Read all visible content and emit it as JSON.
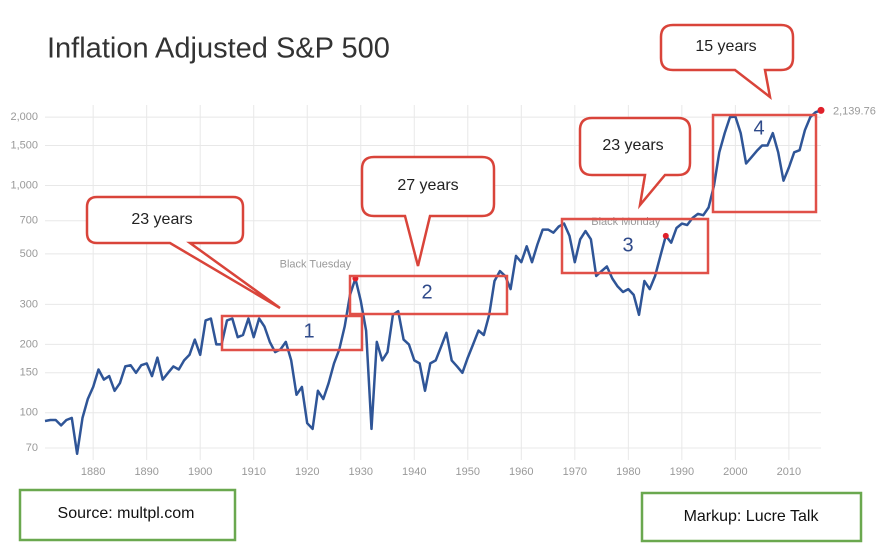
{
  "chart_data": {
    "type": "line",
    "title": "Inflation Adjusted S&P 500",
    "log_scale": true,
    "grid": true,
    "x": [
      1871,
      1872,
      1873,
      1874,
      1875,
      1876,
      1877,
      1878,
      1879,
      1880,
      1881,
      1882,
      1883,
      1884,
      1885,
      1886,
      1887,
      1888,
      1889,
      1890,
      1891,
      1892,
      1893,
      1894,
      1895,
      1896,
      1897,
      1898,
      1899,
      1900,
      1901,
      1902,
      1903,
      1904,
      1905,
      1906,
      1907,
      1908,
      1909,
      1910,
      1911,
      1912,
      1913,
      1914,
      1915,
      1916,
      1917,
      1918,
      1919,
      1920,
      1921,
      1922,
      1923,
      1924,
      1925,
      1926,
      1927,
      1928,
      1929,
      1930,
      1931,
      1932,
      1933,
      1934,
      1935,
      1936,
      1937,
      1938,
      1939,
      1940,
      1941,
      1942,
      1943,
      1944,
      1945,
      1946,
      1947,
      1948,
      1949,
      1950,
      1951,
      1952,
      1953,
      1954,
      1955,
      1956,
      1957,
      1958,
      1959,
      1960,
      1961,
      1962,
      1963,
      1964,
      1965,
      1966,
      1967,
      1968,
      1969,
      1970,
      1971,
      1972,
      1973,
      1974,
      1975,
      1976,
      1977,
      1978,
      1979,
      1980,
      1981,
      1982,
      1983,
      1984,
      1985,
      1986,
      1987,
      1988,
      1989,
      1990,
      1991,
      1992,
      1993,
      1994,
      1995,
      1996,
      1997,
      1998,
      1999,
      2000,
      2001,
      2002,
      2003,
      2004,
      2005,
      2006,
      2007,
      2008,
      2009,
      2010,
      2011,
      2012,
      2013,
      2014,
      2015,
      2016
    ],
    "series": [
      {
        "name": "S&P 500",
        "color": "#2f5597",
        "values": [
          92,
          93,
          93,
          88,
          93,
          95,
          66,
          95,
          115,
          130,
          155,
          140,
          145,
          125,
          135,
          160,
          162,
          150,
          162,
          165,
          145,
          175,
          140,
          150,
          160,
          155,
          170,
          180,
          210,
          180,
          255,
          260,
          200,
          200,
          255,
          260,
          215,
          220,
          260,
          215,
          260,
          240,
          205,
          185,
          190,
          205,
          170,
          120,
          130,
          90,
          85,
          125,
          115,
          135,
          165,
          190,
          240,
          330,
          390,
          310,
          230,
          85,
          205,
          170,
          185,
          270,
          280,
          210,
          200,
          170,
          165,
          125,
          165,
          170,
          195,
          225,
          170,
          160,
          150,
          175,
          200,
          230,
          220,
          270,
          380,
          420,
          400,
          350,
          490,
          460,
          540,
          460,
          550,
          640,
          640,
          620,
          660,
          680,
          600,
          460,
          580,
          630,
          580,
          400,
          420,
          440,
          390,
          360,
          340,
          350,
          330,
          270,
          380,
          350,
          400,
          490,
          600,
          560,
          650,
          680,
          670,
          720,
          750,
          740,
          800,
          1000,
          1400,
          1700,
          2000,
          2010,
          1700,
          1250,
          1330,
          1420,
          1500,
          1500,
          1700,
          1400,
          1050,
          1200,
          1400,
          1430,
          1750,
          2000,
          2100,
          2139.76
        ]
      }
    ],
    "last_value_label": "2,139.76",
    "xlim": [
      1871,
      2016
    ],
    "ylim": [
      62,
      2260
    ],
    "xticks": [
      1880,
      1890,
      1900,
      1910,
      1920,
      1930,
      1940,
      1950,
      1960,
      1970,
      1980,
      1990,
      2000,
      2010
    ],
    "yticks": [
      70,
      100,
      150,
      200,
      300,
      500,
      700,
      {
        "value": 1000,
        "label": "1,000"
      },
      {
        "value": 1500,
        "label": "1,500"
      },
      {
        "value": 2000,
        "label": "2,000"
      }
    ],
    "events": [
      {
        "label": "Black Tuesday",
        "index": 58
      },
      {
        "label": "Black Monday",
        "index": 116
      }
    ],
    "event_color": "#e0202a",
    "periods": [
      {
        "number": "1",
        "callout": "23 years"
      },
      {
        "number": "2",
        "callout": "27 years"
      },
      {
        "number": "3",
        "callout": "23 years"
      },
      {
        "number": "4",
        "callout": "15 years"
      }
    ],
    "source": "Source: multpl.com",
    "markup": "Markup: Lucre Talk"
  }
}
